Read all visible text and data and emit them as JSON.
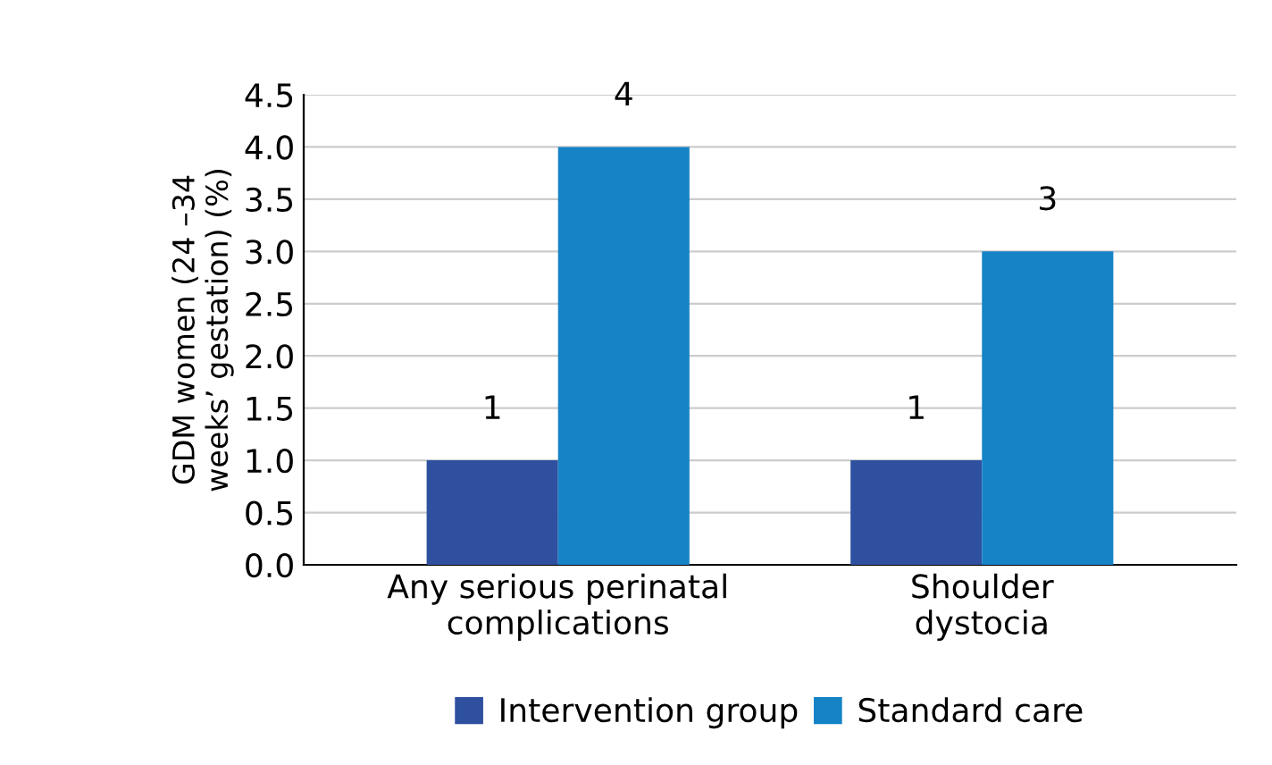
{
  "chart_data": {
    "type": "bar",
    "ylabel": "GDM women (24 –34\nweeks’ gestation) (%)",
    "categories": [
      "Any serious perinatal\ncomplications",
      "Shoulder\ndystocia"
    ],
    "series": [
      {
        "name": "Intervention group",
        "color": "#2e509f",
        "values": [
          1,
          1
        ]
      },
      {
        "name": "Standard care",
        "color": "#1583c6",
        "values": [
          4,
          3
        ]
      }
    ],
    "ylim": [
      0,
      4.5
    ],
    "yticks": [
      {
        "value": 0,
        "label": "0.0"
      },
      0.5,
      {
        "value": 1,
        "label": "1.0"
      },
      1.5,
      {
        "value": 2,
        "label": "2.0"
      },
      2.5,
      {
        "value": 3,
        "label": "3.0"
      },
      3.5,
      {
        "value": 4,
        "label": "4.0"
      },
      4.5
    ],
    "grid": "y",
    "legend": "bottom",
    "data_labels": true
  }
}
